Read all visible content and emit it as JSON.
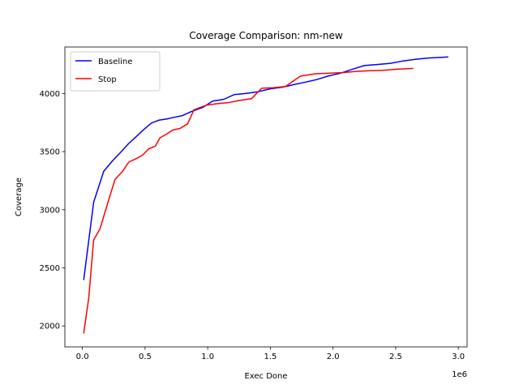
{
  "chart_data": {
    "type": "line",
    "title": "Coverage Comparison: nm-new",
    "xlabel": "Exec Done",
    "ylabel": "Coverage",
    "x_offset_label": "1e6",
    "xlim": [
      -0.14,
      3.07
    ],
    "ylim": [
      1820,
      4400
    ],
    "x_ticks": [
      0.0,
      0.5,
      1.0,
      1.5,
      2.0,
      2.5,
      3.0
    ],
    "x_tick_labels": [
      "0.0",
      "0.5",
      "1.0",
      "1.5",
      "2.0",
      "2.5",
      "3.0"
    ],
    "y_ticks": [
      2000,
      2500,
      3000,
      3500,
      4000
    ],
    "y_tick_labels": [
      "2000",
      "2500",
      "3000",
      "3500",
      "4000"
    ],
    "grid": false,
    "legend_position": "upper-left",
    "series": [
      {
        "name": "Baseline",
        "color": "#0000ff",
        "x": [
          0.01,
          0.09,
          0.17,
          0.24,
          0.31,
          0.37,
          0.43,
          0.49,
          0.55,
          0.61,
          0.67,
          0.73,
          0.8,
          0.87,
          0.96,
          1.04,
          1.13,
          1.21,
          1.3,
          1.4,
          1.5,
          1.6,
          1.68,
          1.77,
          1.87,
          1.96,
          2.06,
          2.16,
          2.25,
          2.36,
          2.46,
          2.56,
          2.66,
          2.76,
          2.85,
          2.92
        ],
        "y": [
          2395,
          3065,
          3330,
          3420,
          3500,
          3570,
          3630,
          3690,
          3745,
          3770,
          3780,
          3795,
          3810,
          3845,
          3880,
          3935,
          3950,
          3990,
          4000,
          4015,
          4040,
          4055,
          4075,
          4095,
          4120,
          4150,
          4175,
          4210,
          4240,
          4250,
          4260,
          4280,
          4295,
          4305,
          4310,
          4315
        ]
      },
      {
        "name": "Stop",
        "color": "#ff0000",
        "x": [
          0.01,
          0.05,
          0.09,
          0.14,
          0.2,
          0.26,
          0.32,
          0.37,
          0.43,
          0.48,
          0.53,
          0.58,
          0.62,
          0.67,
          0.72,
          0.78,
          0.84,
          0.89,
          0.99,
          1.09,
          1.16,
          1.25,
          1.35,
          1.43,
          1.52,
          1.62,
          1.74,
          1.86,
          1.98,
          2.08,
          2.18,
          2.28,
          2.4,
          2.52,
          2.64
        ],
        "y": [
          1935,
          2240,
          2740,
          2835,
          3050,
          3260,
          3330,
          3410,
          3440,
          3470,
          3525,
          3545,
          3620,
          3650,
          3685,
          3700,
          3740,
          3860,
          3900,
          3915,
          3920,
          3940,
          3955,
          4045,
          4050,
          4060,
          4150,
          4170,
          4175,
          4180,
          4190,
          4195,
          4200,
          4210,
          4215
        ]
      }
    ]
  }
}
